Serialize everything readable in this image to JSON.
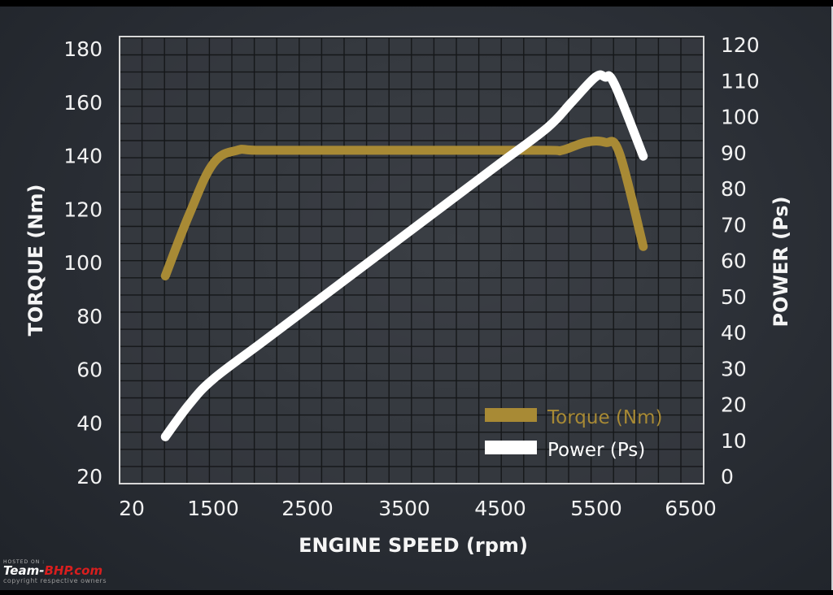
{
  "chart_data": {
    "type": "line",
    "title": "",
    "xlabel": "ENGINE SPEED (rpm)",
    "ylabel": "TORQUE (Nm)",
    "y2label": "POWER (Ps)",
    "x_tick_labels": [
      "20",
      "1500",
      "2500",
      "3500",
      "4500",
      "5500",
      "6500"
    ],
    "y_ticks": [
      20,
      40,
      60,
      80,
      100,
      120,
      140,
      160,
      180
    ],
    "y2_ticks": [
      0,
      10,
      20,
      30,
      40,
      50,
      60,
      70,
      80,
      90,
      100,
      110,
      120
    ],
    "xlim": [
      500,
      6500
    ],
    "ylim": [
      20,
      180
    ],
    "y2lim": [
      0,
      120
    ],
    "grid": true,
    "legend_position": "lower right inside",
    "series": [
      {
        "name": "Torque (Nm)",
        "axis": "left",
        "color": "#a88a35",
        "x": [
          1000,
          1250,
          1500,
          1750,
          2000,
          3000,
          4000,
          5000,
          5150,
          5400,
          5600,
          5750,
          6000
        ],
        "y": [
          95,
          118,
          137,
          142,
          142,
          142,
          142,
          142,
          142,
          145,
          145,
          141,
          106
        ]
      },
      {
        "name": "Power (Ps)",
        "axis": "right",
        "color": "#ffffff",
        "x": [
          1000,
          1250,
          1500,
          2000,
          2500,
          3000,
          3500,
          4000,
          4500,
          5000,
          5250,
          5500,
          5600,
          5700,
          6000
        ],
        "y": [
          11,
          20,
          27,
          37,
          47,
          57,
          67,
          77,
          87,
          97,
          104,
          111,
          111,
          109,
          89
        ]
      }
    ]
  },
  "legend": {
    "torque_label": "Torque (Nm)",
    "power_label": "Power (Ps)"
  },
  "watermark": {
    "hosted": "HOSTED ON :",
    "brand_a": "Team-",
    "brand_b": "BHP.com",
    "copyright": "copyright respective owners"
  },
  "colors": {
    "torque": "#a88a35",
    "power": "#ffffff",
    "grid": "#151719",
    "frame": "#d8d8d8"
  }
}
